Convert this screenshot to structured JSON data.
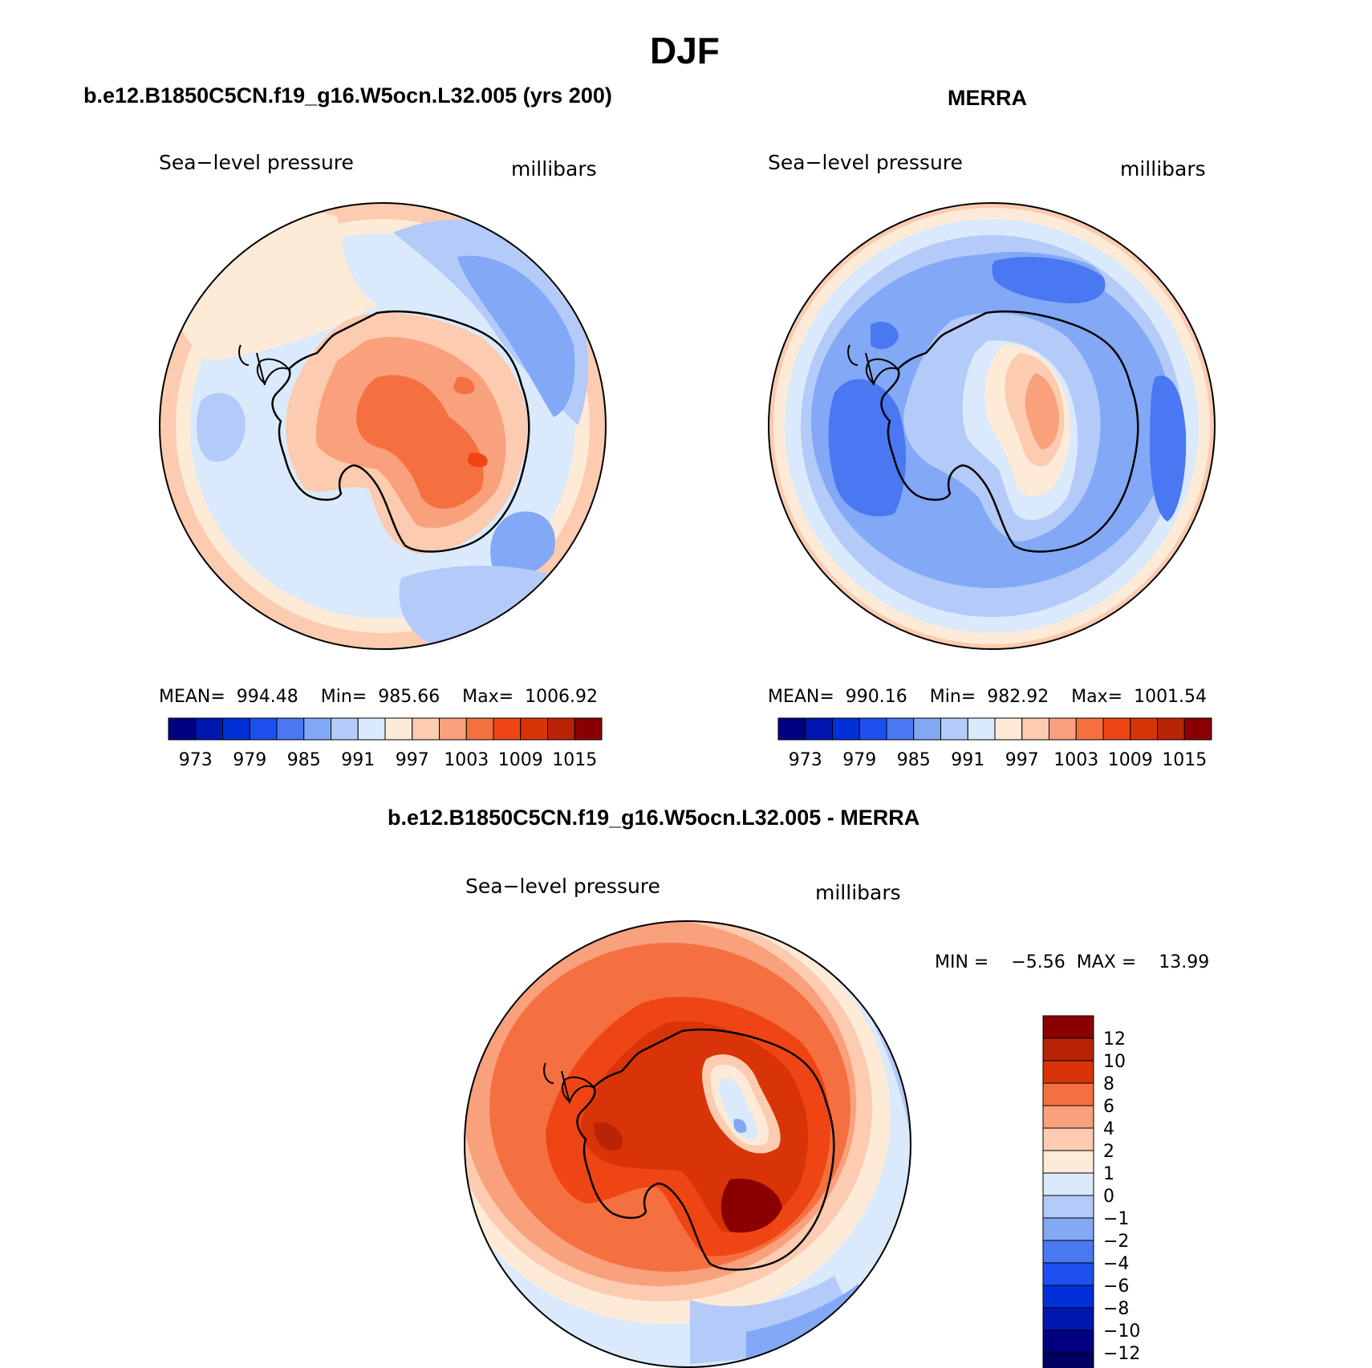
{
  "page": {
    "title": "DJF",
    "diff_title": "b.e12.B1850C5CN.f19_g16.W5ocn.L32.005 - MERRA"
  },
  "panels": {
    "model": {
      "title": "b.e12.B1850C5CN.f19_g16.W5ocn.L32.005 (yrs 200)",
      "variable": "Sea−level pressure",
      "units": "millibars",
      "stats": "MEAN=  994.48    Min=  985.66    Max=  1006.92"
    },
    "obs": {
      "title": "MERRA",
      "variable": "Sea−level pressure",
      "units": "millibars",
      "stats": "MEAN=  990.16    Min=  982.92    Max=  1001.54"
    },
    "diff": {
      "variable": "Sea−level pressure",
      "units": "millibars",
      "minmax": "MIN =    −5.56  MAX =    13.99"
    }
  },
  "colorbar_abs": {
    "labels": [
      "973",
      "979",
      "985",
      "991",
      "997",
      "1003",
      "1009",
      "1015"
    ],
    "colors": [
      "#000080",
      "#0018b0",
      "#0230d8",
      "#1e50f0",
      "#4a78f2",
      "#82a8f6",
      "#b4caf8",
      "#daeafc",
      "#fdebd8",
      "#fccbb0",
      "#f9a07c",
      "#f57040",
      "#ef4515",
      "#d83408",
      "#b82404",
      "#8a0000"
    ]
  },
  "colorbar_diff": {
    "labels": [
      "12",
      "10",
      "8",
      "6",
      "4",
      "2",
      "1",
      "0",
      "−1",
      "−2",
      "−4",
      "−6",
      "−8",
      "−10",
      "−12"
    ],
    "colors": [
      "#8a0000",
      "#b82404",
      "#d83408",
      "#f57040",
      "#f9a07c",
      "#fccbb0",
      "#fdebd8",
      "#daeafc",
      "#b4caf8",
      "#82a8f6",
      "#4a78f2",
      "#1e50f0",
      "#0230d8",
      "#0018b0",
      "#000080",
      "#000060"
    ]
  }
}
